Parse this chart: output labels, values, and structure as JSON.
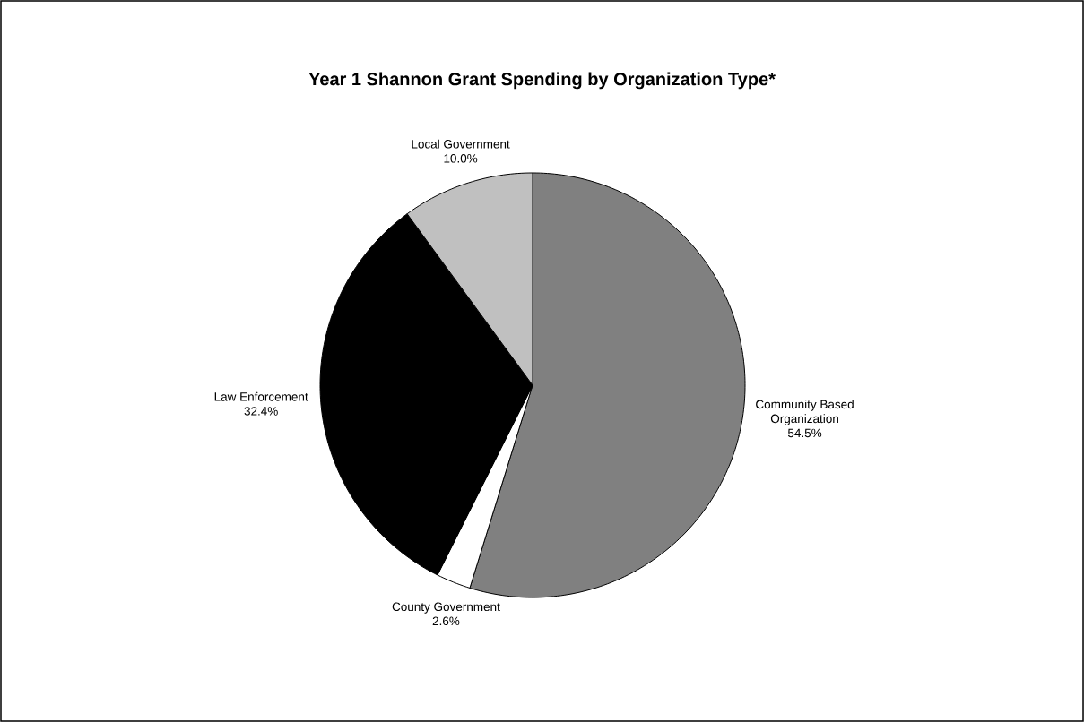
{
  "chart_data": {
    "type": "pie",
    "title": "Year 1 Shannon Grant Spending by Organization Type*",
    "categories": [
      "Community Based Organization",
      "County Government",
      "Law Enforcement",
      "Local Government"
    ],
    "values": [
      54.5,
      2.6,
      32.4,
      10.0
    ],
    "value_labels": [
      "54.5%",
      "2.6%",
      "32.4%",
      "10.0%"
    ],
    "colors": [
      "#808080",
      "#ffffff",
      "#000000",
      "#c0c0c0"
    ]
  }
}
